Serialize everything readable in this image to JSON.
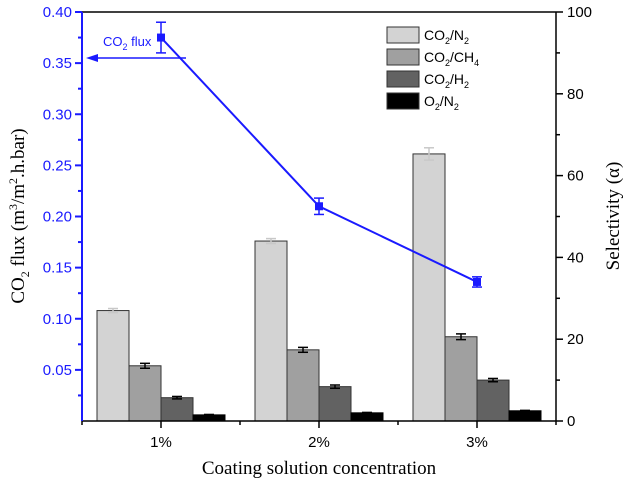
{
  "chart_data": {
    "type": "bar",
    "title": "",
    "xlabel": "Coating solution concentration",
    "ylabel_left": {
      "main": "CO",
      "sub": "2",
      "rest": " flux (m",
      "sup1": "3",
      "mid": "/m",
      "sup2": "2",
      "end": ".h.bar)"
    },
    "ylabel_right": "Selectivity (α)",
    "categories": [
      "1%",
      "2%",
      "3%"
    ],
    "left_axis": {
      "ylim": [
        0,
        0.4
      ],
      "ticks": [
        0.05,
        0.1,
        0.15,
        0.2,
        0.25,
        0.3,
        0.35,
        0.4
      ],
      "tick_labels": [
        "0.05",
        "0.10",
        "0.15",
        "0.20",
        "0.25",
        "0.30",
        "0.35",
        "0.40"
      ],
      "color": "#1a1aff"
    },
    "right_axis": {
      "ylim": [
        0,
        100
      ],
      "ticks": [
        0,
        20,
        40,
        60,
        80,
        100
      ],
      "tick_labels": [
        "0",
        "20",
        "40",
        "60",
        "80",
        "100"
      ]
    },
    "bar_series": [
      {
        "name": "CO2/N2",
        "label_parts": [
          "CO",
          "2",
          "/N",
          "2"
        ],
        "color": "#d3d3d3",
        "values": [
          27,
          44,
          65.3
        ],
        "errors": [
          0.5,
          0.6,
          1.5
        ]
      },
      {
        "name": "CO2/CH4",
        "label_parts": [
          "CO",
          "2",
          "/CH",
          "4"
        ],
        "color": "#a0a0a0",
        "values": [
          13.5,
          17.4,
          20.6
        ],
        "errors": [
          0.6,
          0.6,
          0.7
        ]
      },
      {
        "name": "CO2/H2",
        "label_parts": [
          "CO",
          "2",
          "/H",
          "2"
        ],
        "color": "#626262",
        "values": [
          5.7,
          8.4,
          10.0
        ],
        "errors": [
          0.3,
          0.4,
          0.4
        ]
      },
      {
        "name": "O2/N2",
        "label_parts": [
          "O",
          "2",
          "/N",
          "2"
        ],
        "color": "#000000",
        "values": [
          1.5,
          2.0,
          2.5
        ],
        "errors": [
          0.1,
          0.1,
          0.1
        ]
      }
    ],
    "line_series": {
      "name": "CO2 flux",
      "axis": "left",
      "color": "#1a1aff",
      "values": [
        0.375,
        0.21,
        0.136
      ],
      "errors": [
        0.015,
        0.008,
        0.005
      ]
    },
    "annotation": {
      "text_main": "CO",
      "text_sub": "2",
      "text_rest": " flux",
      "arrow_direction": "left",
      "points_to_axis": "left"
    },
    "legend": {
      "position": "top-right-inside"
    },
    "grid": false
  }
}
